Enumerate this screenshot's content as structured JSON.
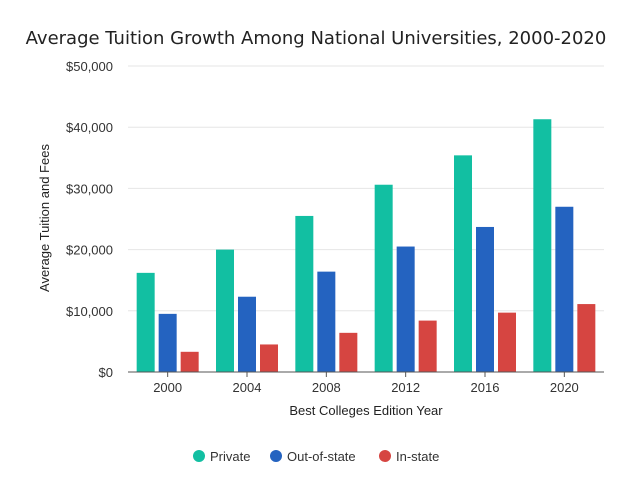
{
  "chart_data": {
    "type": "bar",
    "title": "Average Tuition Growth Among National Universities, 2000-2020",
    "xlabel": "Best Colleges Edition Year",
    "ylabel": "Average Tuition and Fees",
    "categories": [
      "2000",
      "2004",
      "2008",
      "2012",
      "2016",
      "2020"
    ],
    "ylim": [
      0,
      50000
    ],
    "yticks": [
      0,
      10000,
      20000,
      30000,
      40000,
      50000
    ],
    "ytick_labels": [
      "$0",
      "$10,000",
      "$20,000",
      "$30,000",
      "$40,000",
      "$50,000"
    ],
    "grid": true,
    "legend_position": "bottom-center",
    "series": [
      {
        "name": "Private",
        "color": "#12BFA2",
        "values": [
          16200,
          20000,
          25500,
          30600,
          35400,
          41300
        ]
      },
      {
        "name": "Out-of-state",
        "color": "#2463C0",
        "values": [
          9500,
          12300,
          16400,
          20500,
          23700,
          27000
        ]
      },
      {
        "name": "In-state",
        "color": "#D64541",
        "values": [
          3300,
          4500,
          6400,
          8400,
          9700,
          11100
        ]
      }
    ]
  }
}
